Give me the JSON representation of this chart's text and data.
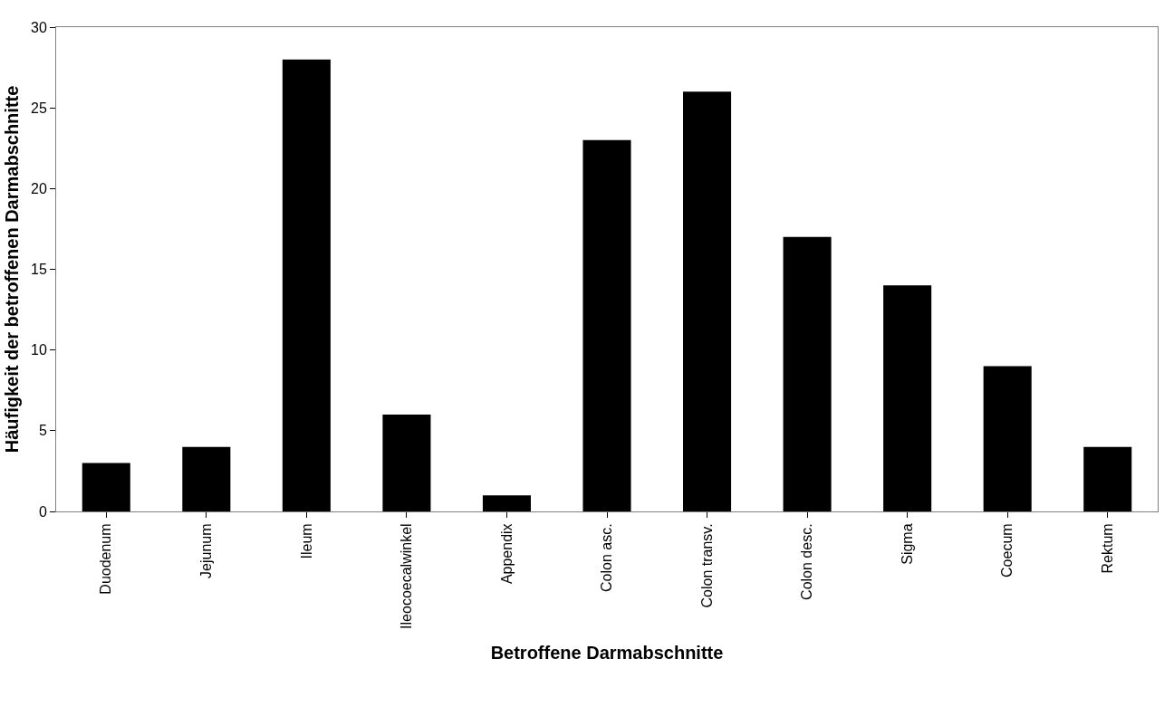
{
  "chart_data": {
    "type": "bar",
    "xlabel": "Betroffene Darmabschnitte",
    "ylabel": "Häufigkeit der betroffenen Darmabschnitte",
    "categories": [
      "Duodenum",
      "Jejunum",
      "Ileum",
      "Ileocoecalwinkel",
      "Appendix",
      "Colon asc.",
      "Colon transv.",
      "Colon desc.",
      "Sigma",
      "Coecum",
      "Rektum"
    ],
    "values": [
      3,
      4,
      28,
      6,
      1,
      23,
      26,
      17,
      14,
      9,
      4
    ],
    "color": "#000000",
    "ylim": [
      0,
      30
    ],
    "yticks": [
      0,
      5,
      10,
      15,
      20,
      25,
      30
    ],
    "legend": false
  }
}
